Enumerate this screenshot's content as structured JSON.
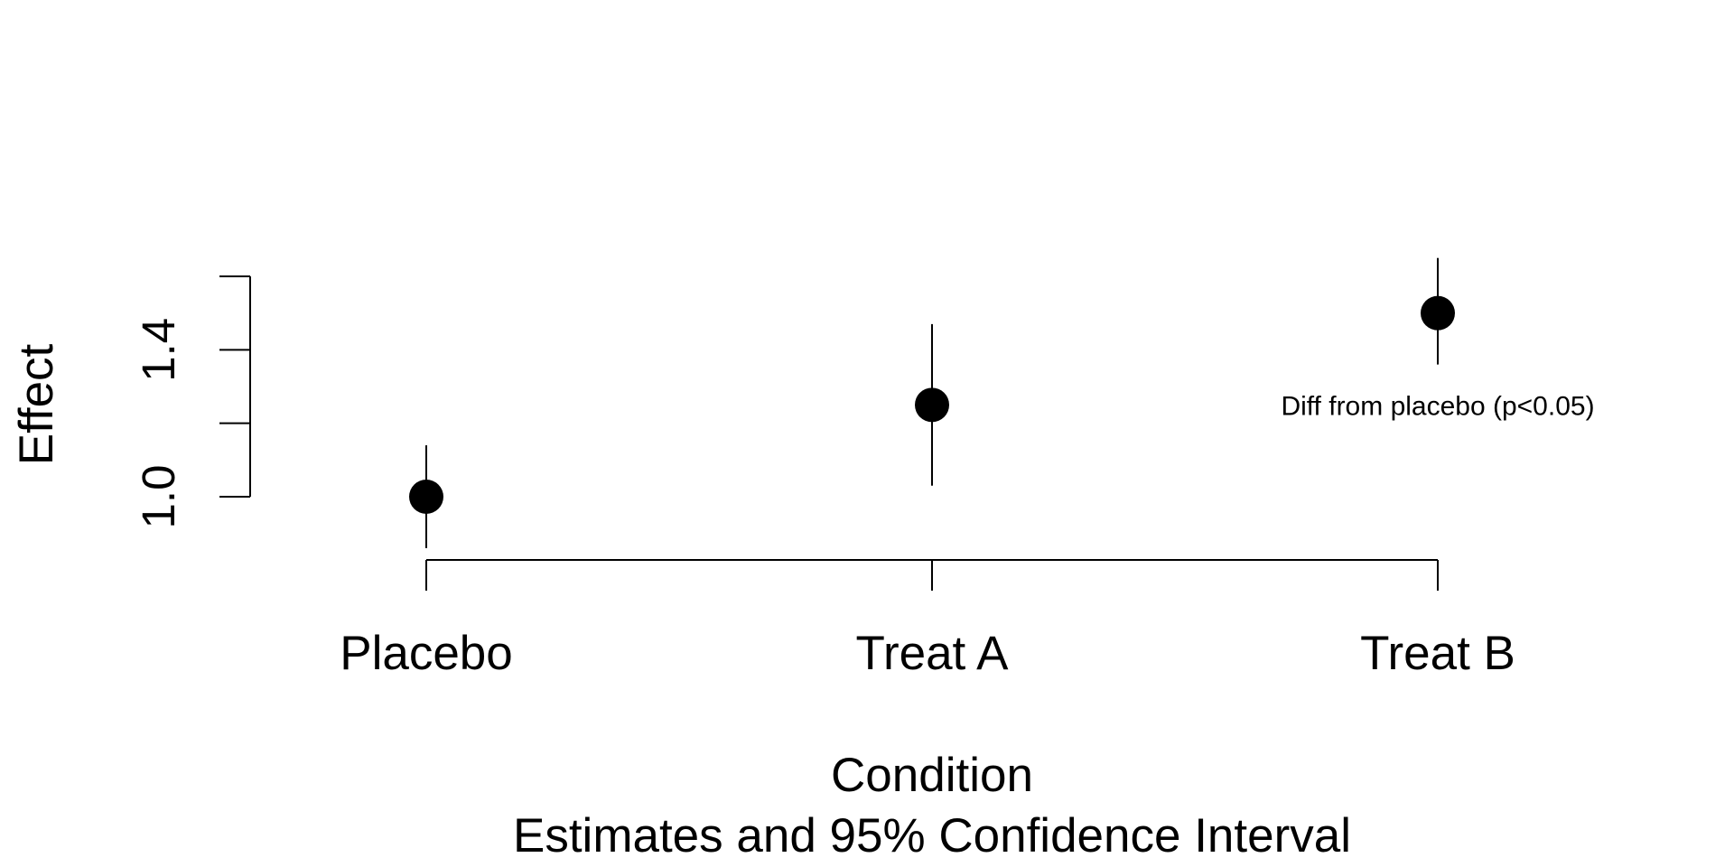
{
  "chart_data": {
    "type": "scatter",
    "categories": [
      "Placebo",
      "Treat A",
      "Treat B"
    ],
    "series": [
      {
        "values": [
          1.0,
          1.25,
          1.5
        ],
        "ci_lower": [
          0.86,
          1.03,
          1.36
        ],
        "ci_upper": [
          1.14,
          1.47,
          1.65
        ]
      }
    ],
    "xlabel": "Condition",
    "ylabel": "Effect",
    "subtitle": "Estimates and 95% Confidence Interval",
    "yticks": [
      1.0,
      1.2,
      1.4,
      1.6
    ],
    "ytick_labels": [
      "1.0",
      "",
      "1.4",
      ""
    ],
    "ylim": [
      0.83,
      1.66
    ],
    "grid": false,
    "annotation": {
      "text": "Diff from placebo (p<0.05)",
      "category": "Treat B",
      "y": 1.25
    },
    "colors": {
      "points": "#000000",
      "lines": "#000000",
      "background": "#ffffff"
    }
  }
}
